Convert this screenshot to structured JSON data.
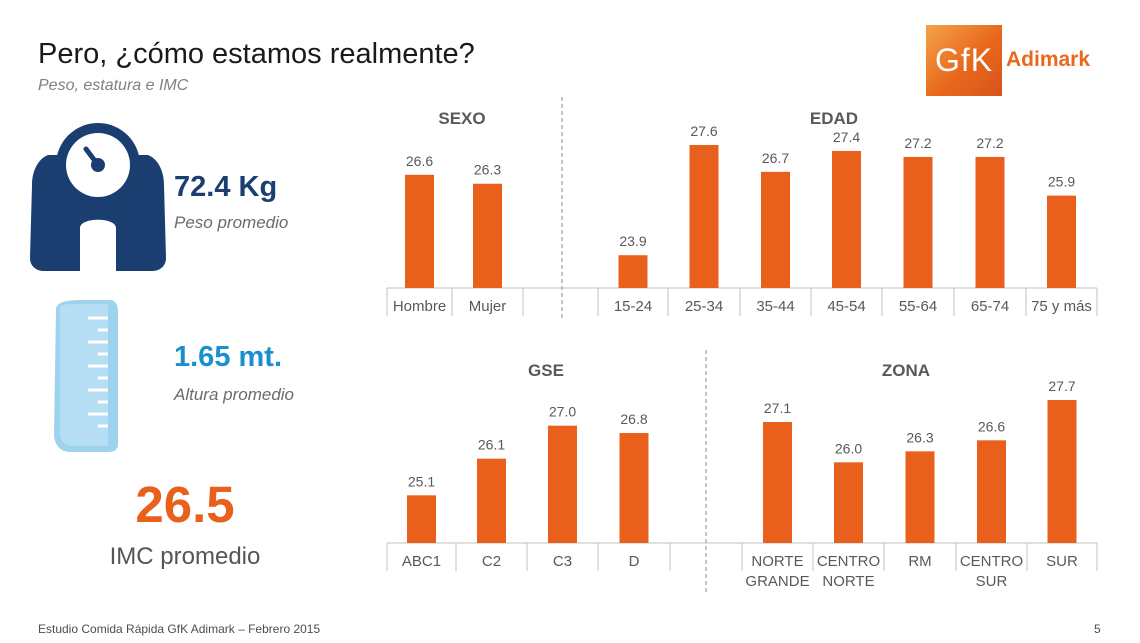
{
  "header": {
    "title": "Pero, ¿cómo estamos realmente?",
    "subtitle": "Peso, estatura e IMC"
  },
  "logo": {
    "mark": "GfK",
    "word": "Adimark"
  },
  "stats": {
    "weight": {
      "value": "72.4 Kg",
      "label": "Peso promedio",
      "icon": "scale-icon"
    },
    "height": {
      "value": "1.65 mt.",
      "label": "Altura promedio",
      "icon": "measuring-tape-icon"
    },
    "imc": {
      "value": "26.5",
      "label": "IMC promedio"
    }
  },
  "colors": {
    "bar": "#e8601c",
    "weight": "#1a3e6f",
    "height": "#1a8fd0",
    "imc": "#e8601c",
    "tape": "#9ed3f0"
  },
  "chart_data": [
    {
      "type": "bar",
      "title": "SEXO",
      "categories": [
        "Hombre",
        "Mujer"
      ],
      "values": [
        26.6,
        26.3
      ],
      "ylim": [
        22.8,
        27.6
      ]
    },
    {
      "type": "bar",
      "title": "EDAD",
      "categories": [
        "15-24",
        "25-34",
        "35-44",
        "45-54",
        "55-64",
        "65-74",
        "75 y más"
      ],
      "values": [
        23.9,
        27.6,
        26.7,
        27.4,
        27.2,
        27.2,
        25.9
      ],
      "ylim": [
        22.8,
        27.6
      ]
    },
    {
      "type": "bar",
      "title": "GSE",
      "categories": [
        "ABC1",
        "C2",
        "C3",
        "D"
      ],
      "values": [
        25.1,
        26.1,
        27.0,
        26.8
      ],
      "ylim": [
        23.8,
        27.7
      ]
    },
    {
      "type": "bar",
      "title": "ZONA",
      "categories": [
        "NORTE GRANDE",
        "CENTRO NORTE",
        "RM",
        "CENTRO SUR",
        "SUR"
      ],
      "values": [
        27.1,
        26.0,
        26.3,
        26.6,
        27.7
      ],
      "ylim": [
        23.8,
        27.7
      ]
    }
  ],
  "footer": {
    "text": "Estudio Comida Rápida GfK Adimark – Febrero 2015",
    "page": "5"
  }
}
